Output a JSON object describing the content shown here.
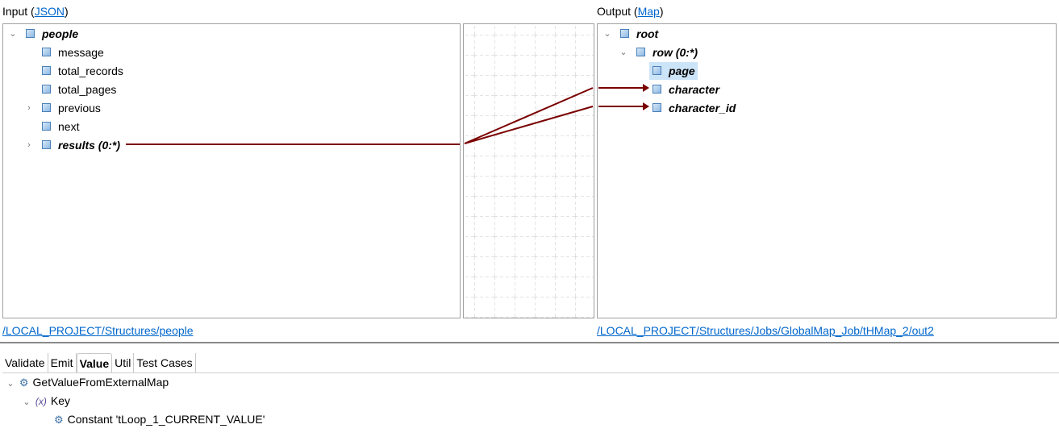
{
  "input": {
    "label": "Input (",
    "link": "JSON",
    "close": ")",
    "path": "/LOCAL_PROJECT/Structures/people",
    "tree": [
      {
        "label": "people",
        "bold": true,
        "expander": "expanded"
      },
      {
        "label": "message"
      },
      {
        "label": "total_records"
      },
      {
        "label": "total_pages"
      },
      {
        "label": "previous",
        "expander": "collapsed"
      },
      {
        "label": "next"
      },
      {
        "label": "results (0:*)",
        "bold": true,
        "expander": "collapsed"
      }
    ]
  },
  "output": {
    "label": "Output (",
    "link": "Map",
    "close": ")",
    "path": "/LOCAL_PROJECT/Structures/Jobs/GlobalMap_Job/tHMap_2/out2",
    "tree": [
      {
        "label": "root",
        "bold": true,
        "expander": "expanded"
      },
      {
        "label": "row (0:*)",
        "bold": true,
        "expander": "expanded"
      },
      {
        "label": "page",
        "bold": true,
        "selected": true
      },
      {
        "label": "character",
        "bold": true
      },
      {
        "label": "character_id",
        "bold": true
      }
    ]
  },
  "mapping_color": "#7a0000",
  "tabs": [
    "Validate",
    "Emit",
    "Value",
    "Util",
    "Test Cases"
  ],
  "active_tab": "Value",
  "value_tree": [
    {
      "label": "GetValueFromExternalMap",
      "icon": "gear-icon"
    },
    {
      "label": "Key",
      "icon": "variable-icon"
    },
    {
      "label": "Constant 'tLoop_1_CURRENT_VALUE'",
      "icon": "gear-icon"
    }
  ]
}
